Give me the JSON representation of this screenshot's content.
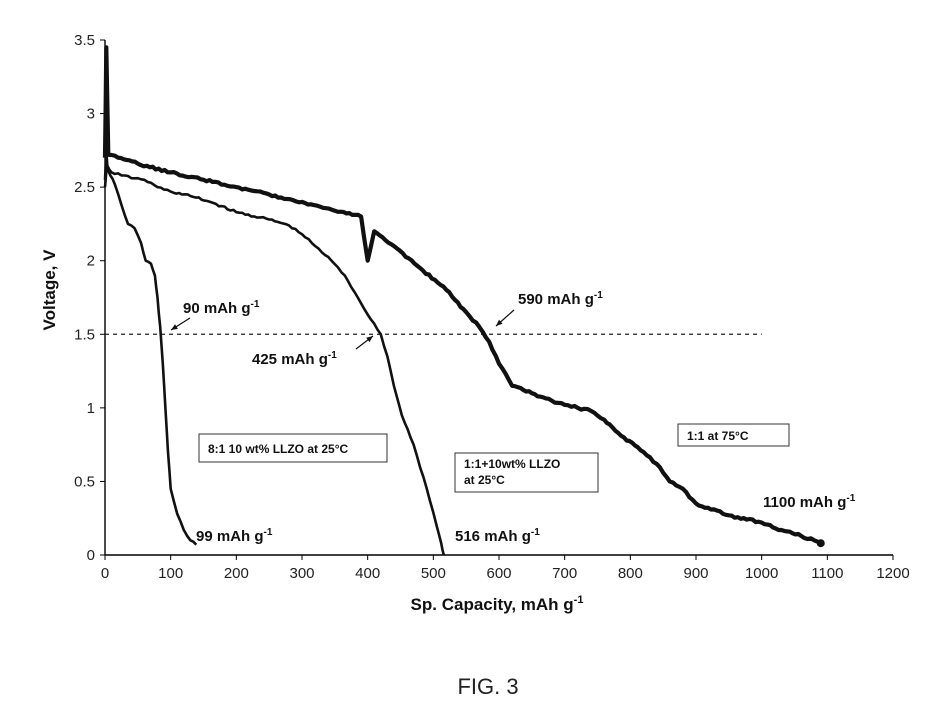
{
  "figure_caption": "FIG. 3",
  "chart_data": {
    "type": "line",
    "xlabel": "Sp. Capacity, mAh g",
    "xlabel_sup": "-1",
    "ylabel": "Voltage, V",
    "xlim": [
      0,
      1200
    ],
    "ylim": [
      0,
      3.5
    ],
    "x_ticks": [
      "0",
      "100",
      "200",
      "300",
      "400",
      "500",
      "600",
      "700",
      "800",
      "900",
      "1000",
      "1100",
      "1200"
    ],
    "y_ticks": [
      "0",
      "0.5",
      "1",
      "1.5",
      "2",
      "2.5",
      "3",
      "3.5"
    ],
    "reference_line": {
      "y": 1.5,
      "x_range": [
        0,
        1000
      ],
      "style": "dashed"
    },
    "series": [
      {
        "name": "8:1 10 wt% LLZO at 25°C",
        "x": [
          0,
          2,
          4,
          8,
          15,
          25,
          35,
          45,
          55,
          62,
          70,
          76,
          80,
          84,
          88,
          92,
          96,
          100,
          110,
          120,
          130,
          139
        ],
        "y": [
          2.55,
          2.75,
          2.62,
          2.58,
          2.52,
          2.38,
          2.25,
          2.22,
          2.12,
          2.0,
          1.98,
          1.9,
          1.75,
          1.55,
          1.3,
          1.0,
          0.7,
          0.45,
          0.28,
          0.17,
          0.1,
          0.07
        ]
      },
      {
        "name": "1:1+10wt% LLZO at 25°C",
        "x": [
          0,
          3,
          10,
          25,
          45,
          60,
          80,
          100,
          130,
          160,
          200,
          250,
          280,
          300,
          320,
          345,
          365,
          385,
          405,
          420,
          430,
          440,
          452,
          470,
          490,
          505,
          512,
          516
        ],
        "y": [
          2.5,
          2.65,
          2.6,
          2.58,
          2.56,
          2.55,
          2.5,
          2.47,
          2.44,
          2.4,
          2.33,
          2.28,
          2.24,
          2.18,
          2.1,
          2.0,
          1.9,
          1.75,
          1.6,
          1.5,
          1.35,
          1.15,
          0.95,
          0.75,
          0.45,
          0.2,
          0.08,
          0.0
        ]
      },
      {
        "name": "1:1 at 75°C",
        "x": [
          0,
          2,
          5,
          20,
          50,
          100,
          150,
          200,
          250,
          300,
          350,
          390,
          400,
          410,
          440,
          480,
          520,
          550,
          570,
          585,
          600,
          620,
          650,
          680,
          700,
          720,
          740,
          760,
          790,
          820,
          840,
          860,
          880,
          900,
          950,
          1000,
          1030,
          1060,
          1080,
          1090
        ],
        "y": [
          2.7,
          3.45,
          2.72,
          2.7,
          2.66,
          2.6,
          2.55,
          2.5,
          2.45,
          2.4,
          2.34,
          2.3,
          2.0,
          2.2,
          2.1,
          1.95,
          1.8,
          1.65,
          1.55,
          1.45,
          1.3,
          1.15,
          1.1,
          1.05,
          1.02,
          1.0,
          0.98,
          0.92,
          0.8,
          0.7,
          0.62,
          0.5,
          0.45,
          0.35,
          0.27,
          0.22,
          0.17,
          0.13,
          0.1,
          0.08
        ]
      }
    ],
    "annotations": [
      {
        "id": "a90",
        "text": "90 mAh g",
        "sup": "-1",
        "x": 90,
        "y": 1.5
      },
      {
        "id": "a425",
        "text": "425 mAh g",
        "sup": "-1",
        "x": 420,
        "y": 1.5
      },
      {
        "id": "a590",
        "text": "590 mAh g",
        "sup": "-1",
        "x": 590,
        "y": 1.5
      },
      {
        "id": "a99",
        "text": "99 mAh g",
        "sup": "-1",
        "x": 139,
        "y": 0.07
      },
      {
        "id": "a516",
        "text": "516 mAh g",
        "sup": "-1",
        "x": 516,
        "y": 0.0
      },
      {
        "id": "a1100",
        "text": "1100 mAh g",
        "sup": "-1",
        "x": 1090,
        "y": 0.08
      }
    ],
    "labels": [
      {
        "id": "lbl81",
        "lines": [
          "8:1 10 wt% LLZO at 25°C"
        ]
      },
      {
        "id": "lbl11",
        "lines": [
          "1:1+10wt% LLZO",
          "at 25°C"
        ]
      },
      {
        "id": "lbl75",
        "lines": [
          "1:1 at 75°C"
        ]
      }
    ]
  }
}
